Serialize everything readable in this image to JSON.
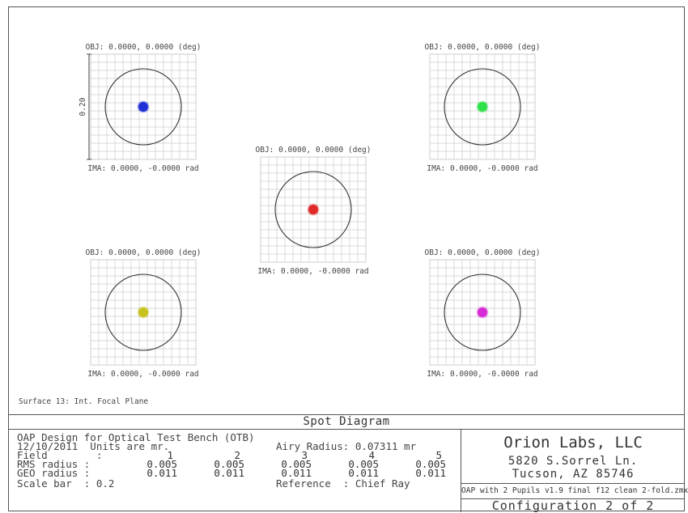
{
  "colors": {
    "field1": "#1f2fd6",
    "field2": "#2ee04a",
    "field3": "#e02a2a",
    "field4": "#c8c21e",
    "field5": "#d62bd6",
    "grid": "#cccccc",
    "circle": "#333333"
  },
  "chart_data": {
    "type": "scatter",
    "title": "Spot Diagram",
    "scale_bar_label": "0.20",
    "fields": [
      {
        "field": 1,
        "obj": "OBJ: 0.0000, 0.0000 (deg)",
        "ima": "IMA: 0.0000, -0.0000 rad",
        "color": "#1f2fd6",
        "rms_radius": 0.005,
        "geo_radius": 0.011
      },
      {
        "field": 2,
        "obj": "OBJ: 0.0000, 0.0000 (deg)",
        "ima": "IMA: 0.0000, -0.0000 rad",
        "color": "#2ee04a",
        "rms_radius": 0.005,
        "geo_radius": 0.011
      },
      {
        "field": 3,
        "obj": "OBJ: 0.0000, 0.0000 (deg)",
        "ima": "IMA: 0.0000, -0.0000 rad",
        "color": "#e02a2a",
        "rms_radius": 0.005,
        "geo_radius": 0.011
      },
      {
        "field": 4,
        "obj": "OBJ: 0.0000, 0.0000 (deg)",
        "ima": "IMA: 0.0000, -0.0000 rad",
        "color": "#c8c21e",
        "rms_radius": 0.005,
        "geo_radius": 0.011
      },
      {
        "field": 5,
        "obj": "OBJ: 0.0000, 0.0000 (deg)",
        "ima": "IMA: 0.0000, -0.0000 rad",
        "color": "#d62bd6",
        "rms_radius": 0.005,
        "geo_radius": 0.011
      }
    ]
  },
  "surface_label": "Surface 13: Int. Focal Plane",
  "title_bar": "Spot Diagram",
  "info": {
    "line1": "OAP Design for Optical Test Bench (OTB)",
    "date_units": "12/10/2011  Units are mr.",
    "airy": "Airy Radius: 0.07311 mr",
    "field_label": "Field        :",
    "rms_label": "RMS radius :",
    "geo_label": "GEO radius :",
    "field_numbers": [
      "1",
      "2",
      "3",
      "4",
      "5"
    ],
    "rms_values": [
      "0.005",
      "0.005",
      "0.005",
      "0.005",
      "0.005"
    ],
    "geo_values": [
      "0.011",
      "0.011",
      "0.011",
      "0.011",
      "0.011"
    ],
    "scale_bar": "Scale bar  : 0.2",
    "reference": "Reference  : Chief Ray"
  },
  "company": {
    "name": "Orion Labs, LLC",
    "address1": "5820 S.Sorrel Ln.",
    "address2": "Tucson, AZ 85746",
    "file": "OAP with 2 Pupils v1.9 final f12 clean 2-fold.zmx",
    "config": "Configuration 2 of 2"
  }
}
